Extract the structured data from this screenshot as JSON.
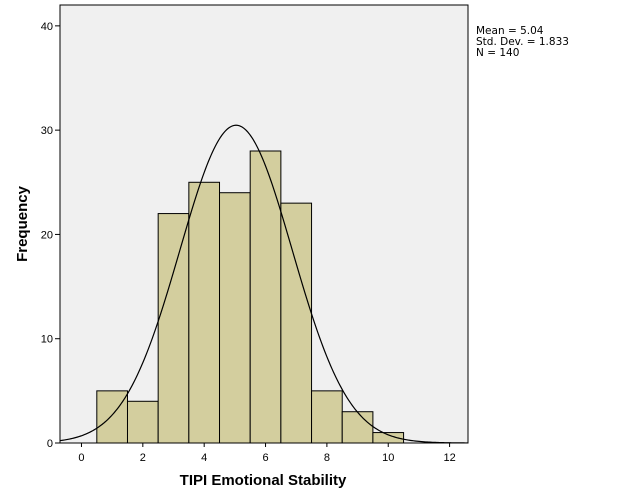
{
  "chart_data": {
    "type": "bar",
    "subtype": "histogram",
    "xlabel": "TIPI Emotional Stability",
    "ylabel": "Frequency",
    "xlim": [
      -0.7,
      12.6
    ],
    "ylim": [
      0,
      42
    ],
    "xticks": [
      0,
      2,
      4,
      6,
      8,
      10,
      12
    ],
    "yticks": [
      0,
      10,
      20,
      30,
      40
    ],
    "bins": [
      {
        "start": 0.5,
        "end": 1.5,
        "count": 5
      },
      {
        "start": 1.5,
        "end": 2.5,
        "count": 4
      },
      {
        "start": 2.5,
        "end": 3.5,
        "count": 22
      },
      {
        "start": 3.5,
        "end": 4.5,
        "count": 25
      },
      {
        "start": 4.5,
        "end": 5.5,
        "count": 24
      },
      {
        "start": 5.5,
        "end": 6.5,
        "count": 28
      },
      {
        "start": 6.5,
        "end": 7.5,
        "count": 23
      },
      {
        "start": 7.5,
        "end": 8.5,
        "count": 5
      },
      {
        "start": 8.5,
        "end": 9.5,
        "count": 3
      },
      {
        "start": 9.5,
        "end": 10.5,
        "count": 1
      }
    ],
    "normal_curve": {
      "mean": 5.04,
      "sd": 1.833,
      "n": 140,
      "bin_width": 1
    },
    "colors": {
      "plot_background": "#f0f0f0",
      "bar_fill": "#d3ce9e",
      "bar_stroke": "#000000",
      "curve": "#000000"
    }
  },
  "stats": {
    "mean_label": "Mean = 5.04",
    "sd_label": "Std. Dev. = 1.833",
    "n_label": "N = 140"
  }
}
